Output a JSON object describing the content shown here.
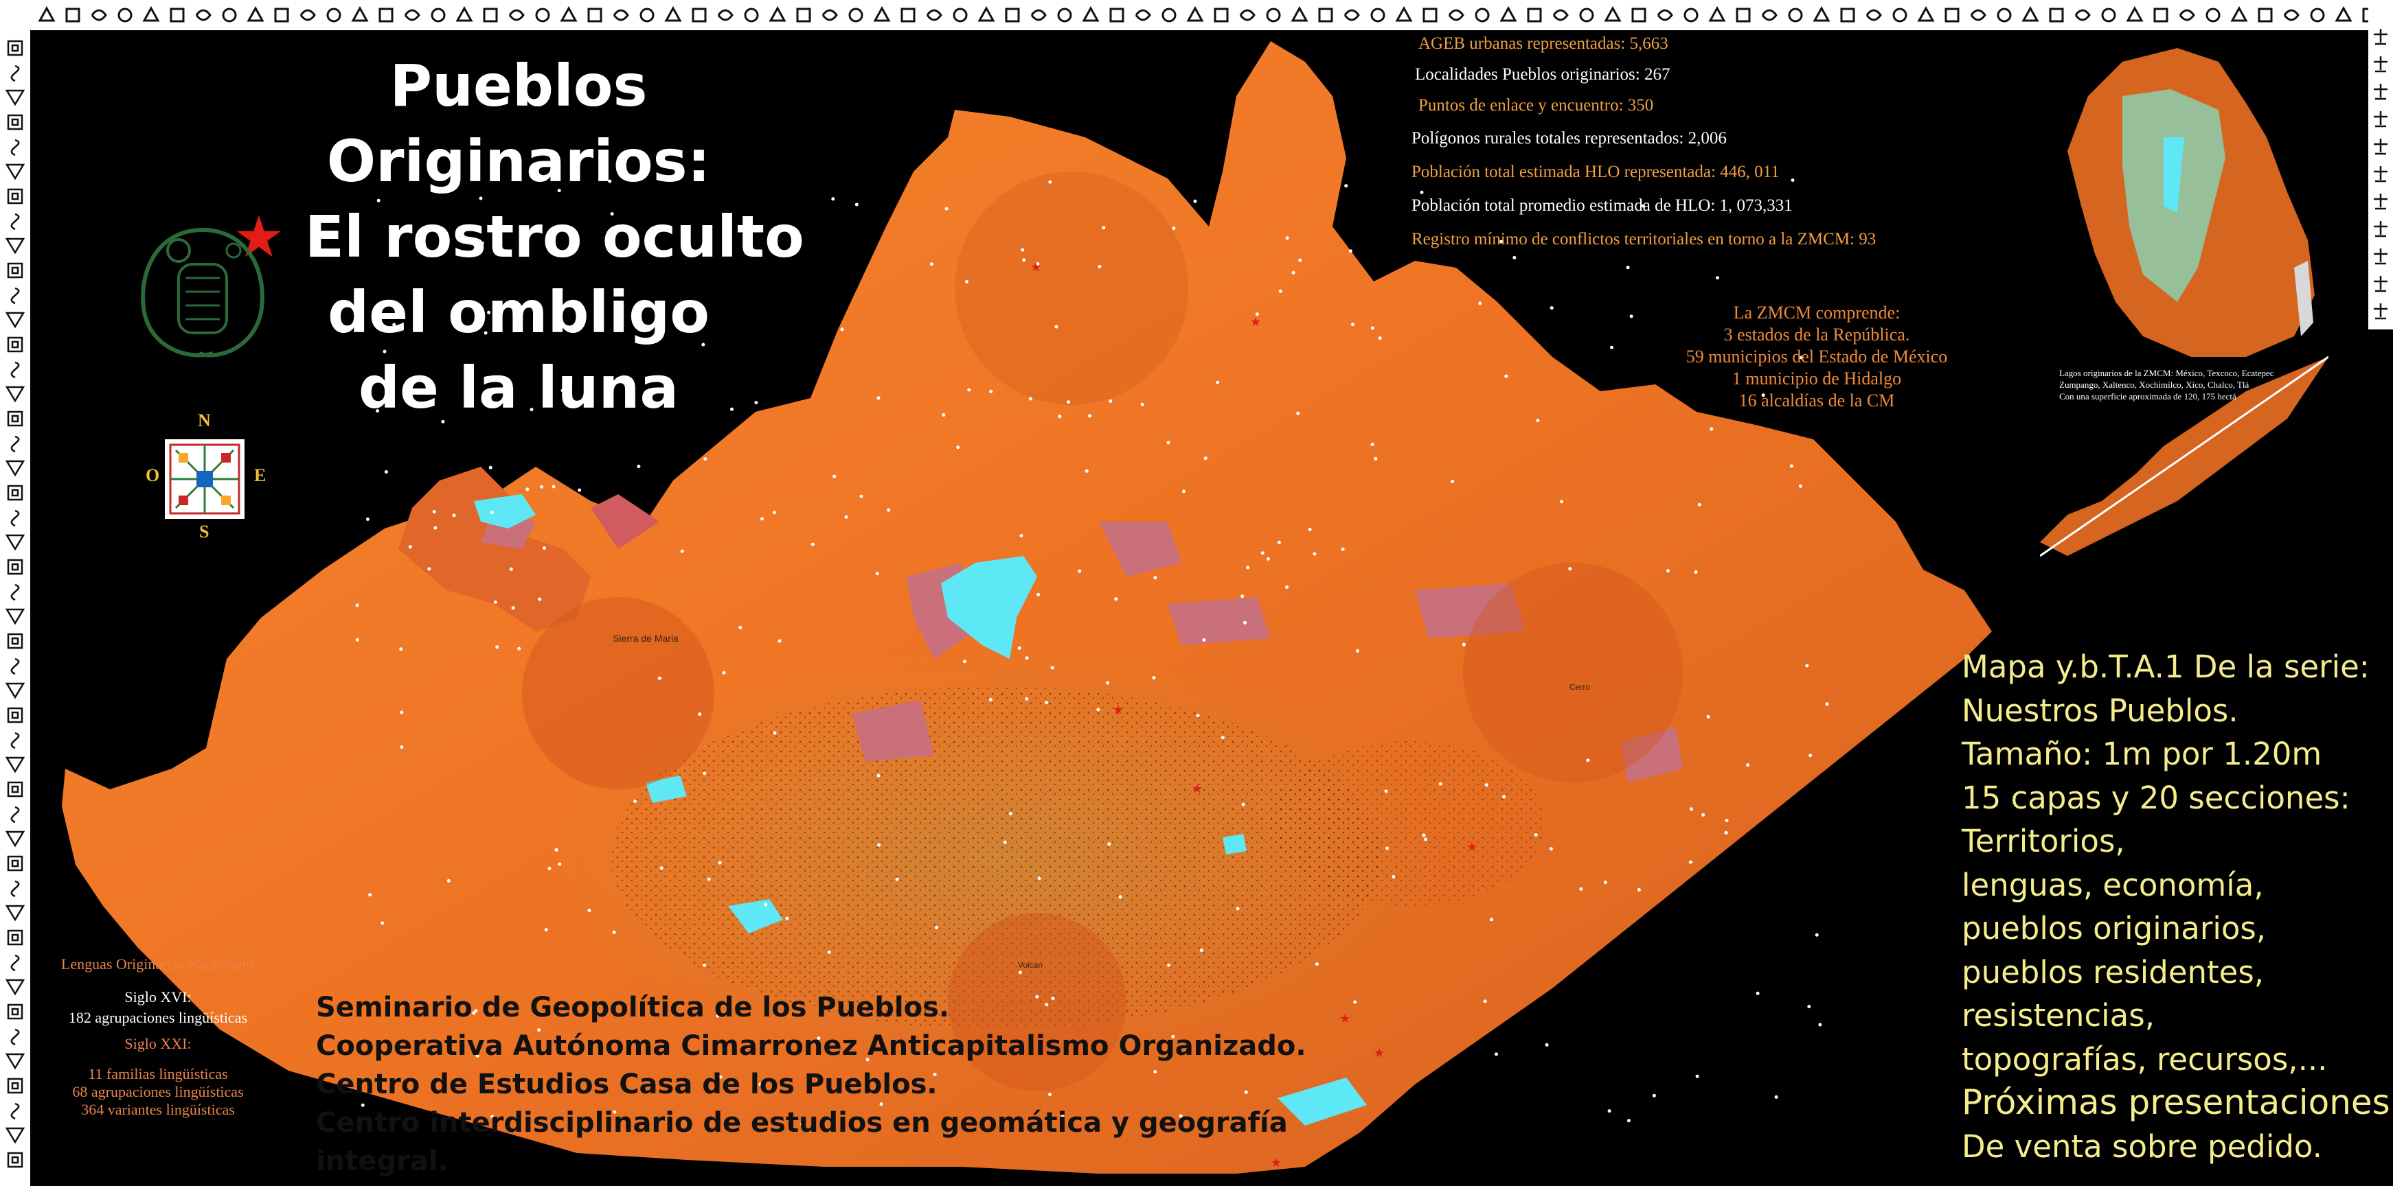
{
  "title": {
    "line1": "Pueblos Originarios:",
    "line2": "El rostro oculto",
    "line3": "del ombligo",
    "line4": "de la luna"
  },
  "stats": [
    {
      "text": "AGEB urbanas representadas: 5,663",
      "color": "#f0a040"
    },
    {
      "text": "Localidades Pueblos originarios: 267",
      "color": "#ffffff"
    },
    {
      "text": "Puntos de enlace y encuentro: 350",
      "color": "#f0a040"
    },
    {
      "text": "Polígonos rurales totales representados: 2,006",
      "color": "#ffffff"
    },
    {
      "text": "Población total estimada HLO representada: 446, 011",
      "color": "#f0a040"
    },
    {
      "text": "Población total promedio estimada de HLO: 1, 073,331",
      "color": "#ffffff"
    },
    {
      "text": "Registro mínimo de conflictos territoriales en torno a la ZMCM: 93",
      "color": "#f0a040"
    }
  ],
  "zmcm": {
    "heading": "La ZMCM comprende:",
    "items": [
      "3 estados de la República.",
      "59 municipios del Estado de México",
      "1 municipio de Hidalgo",
      "16 alcaldías de la CM"
    ]
  },
  "inset_caption": [
    "Lagos originarios de la ZMCM: México, Texcoco, Ecatepec",
    "Zumpango, Xaltenco, Xochimilco, Xico, Chalco, Tlá",
    "Con una superficie aproximada de 120, 175 hectá"
  ],
  "compass": {
    "n": "N",
    "s": "S",
    "e": "E",
    "o": "O"
  },
  "map_labels": {
    "sierra": "Sierra de Maria",
    "peak": "Cerro",
    "volcano": "Volcán"
  },
  "lenguas": {
    "heading": "Lenguas Originarias Nacionales",
    "siglo16": "Siglo XVI:",
    "siglo16_value": "182 agrupaciones lingüísticas",
    "siglo21": "Siglo XXI:",
    "siglo21_values": [
      "11 familias lingüísticas",
      "68 agrupaciones lingüísticas",
      "364 variantes lingüísticas"
    ]
  },
  "credits": [
    "Seminario de Geopolítica de los Pueblos.",
    "Cooperativa Autónoma Cimarronez Anticapitalismo Organizado.",
    "Centro de Estudios Casa de los Pueblos.",
    "Centro interdisciplinario de estudios en geomática y geografía integral."
  ],
  "serie": [
    "Mapa y.b.T.A.1 De la serie:",
    "Nuestros Pueblos.",
    "Tamaño: 1m por 1.20m",
    "15 capas y 20 secciones:",
    "Territorios,",
    "lenguas, economía,",
    "pueblos originarios,",
    "pueblos residentes,",
    "resistencias,",
    "topografías, recursos,...",
    "Próximas presentaciones.",
    "De venta sobre pedido."
  ],
  "colors": {
    "terrain": "#f07a2a",
    "terrain_dark": "#c8461c",
    "lake": "#5ee8f5",
    "urban": "#c97a6a",
    "accent_star": "#e41b17",
    "serie_text": "#f5ec8c"
  }
}
